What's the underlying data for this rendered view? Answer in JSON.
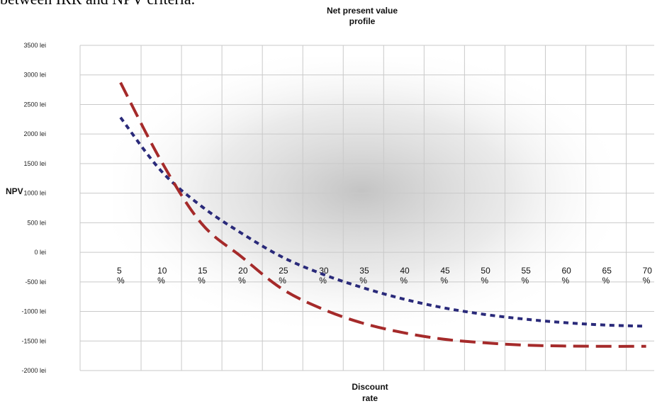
{
  "page": {
    "top_text": "between IRR and NPV criteria."
  },
  "chart_data": {
    "type": "line",
    "title": "Net present value profile",
    "title_lines": [
      "Net present value",
      "profile"
    ],
    "xlabel": "Discount rate",
    "xlabel_lines": [
      "Discount",
      "rate"
    ],
    "ylabel": "NPV",
    "ylim": [
      -2000,
      3500
    ],
    "y_ticks": [
      3500,
      3000,
      2500,
      2000,
      1500,
      1000,
      500,
      0,
      -500,
      -1000,
      -1500,
      -2000
    ],
    "y_tick_labels": [
      "3500 lei",
      "3000 lei",
      "2500 lei",
      "2000 lei",
      "1500 lei",
      "1000 lei",
      "500 lei",
      "0 lei",
      "-500 lei",
      "-1000 lei",
      "-1500 lei",
      "-2000 lei"
    ],
    "x": [
      5,
      10,
      15,
      20,
      25,
      30,
      35,
      40,
      45,
      50,
      55,
      60,
      65,
      70
    ],
    "x_tick_labels": [
      [
        "5",
        "%"
      ],
      [
        "10",
        "%"
      ],
      [
        "15",
        "%"
      ],
      [
        "20",
        "%"
      ],
      [
        "25",
        "%"
      ],
      [
        "30",
        "%"
      ],
      [
        "35",
        "%"
      ],
      [
        "40",
        "%"
      ],
      [
        "45",
        "%"
      ],
      [
        "50",
        "%"
      ],
      [
        "55",
        "%"
      ],
      [
        "60",
        "%"
      ],
      [
        "65",
        "%"
      ],
      [
        "70",
        "%"
      ]
    ],
    "grid": true,
    "legend": "none",
    "series": [
      {
        "color": "#2a2a7a",
        "style": "dotted",
        "values": [
          2280,
          1380,
          780,
          320,
          -80,
          -370,
          -600,
          -790,
          -940,
          -1050,
          -1130,
          -1190,
          -1230,
          -1250
        ]
      },
      {
        "color": "#a52a2a",
        "style": "dashed",
        "values": [
          2870,
          1550,
          490,
          -80,
          -620,
          -960,
          -1200,
          -1360,
          -1470,
          -1530,
          -1570,
          -1585,
          -1590,
          -1590
        ]
      }
    ]
  }
}
